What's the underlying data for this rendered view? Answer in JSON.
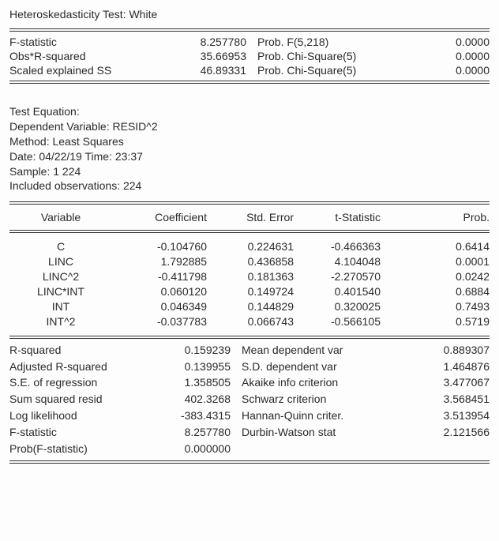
{
  "title": "Heteroskedasticity Test: White",
  "top_stats": [
    {
      "l": "F-statistic",
      "lv": "8.257780",
      "r": "Prob. F(5,218)",
      "rv": "0.0000"
    },
    {
      "l": "Obs*R-squared",
      "lv": "35.66953",
      "r": "Prob. Chi-Square(5)",
      "rv": "0.0000"
    },
    {
      "l": "Scaled explained SS",
      "lv": "46.89331",
      "r": "Prob. Chi-Square(5)",
      "rv": "0.0000"
    }
  ],
  "meta": [
    "Test Equation:",
    "Dependent Variable: RESID^2",
    "Method: Least Squares",
    "Date: 04/22/19   Time: 23:37",
    "Sample: 1 224",
    "Included observations: 224"
  ],
  "coef_headers": {
    "v": "Variable",
    "c": "Coefficient",
    "s": "Std. Error",
    "t": "t-Statistic",
    "p": "Prob."
  },
  "coef_rows": [
    {
      "v": "C",
      "c": "-0.104760",
      "s": "0.224631",
      "t": "-0.466363",
      "p": "0.6414"
    },
    {
      "v": "LINC",
      "c": "1.792885",
      "s": "0.436858",
      "t": "4.104048",
      "p": "0.0001"
    },
    {
      "v": "LINC^2",
      "c": "-0.411798",
      "s": "0.181363",
      "t": "-2.270570",
      "p": "0.0242"
    },
    {
      "v": "LINC*INT",
      "c": "0.060120",
      "s": "0.149724",
      "t": "0.401540",
      "p": "0.6884"
    },
    {
      "v": "INT",
      "c": "0.046349",
      "s": "0.144829",
      "t": "0.320025",
      "p": "0.7493"
    },
    {
      "v": "INT^2",
      "c": "-0.037783",
      "s": "0.066743",
      "t": "-0.566105",
      "p": "0.5719"
    }
  ],
  "summary": [
    {
      "l": "R-squared",
      "lv": "0.159239",
      "r": "Mean dependent var",
      "rv": "0.889307"
    },
    {
      "l": "Adjusted R-squared",
      "lv": "0.139955",
      "r": "S.D. dependent var",
      "rv": "1.464876"
    },
    {
      "l": "S.E. of regression",
      "lv": "1.358505",
      "r": "Akaike info criterion",
      "rv": "3.477067"
    },
    {
      "l": "Sum squared resid",
      "lv": "402.3268",
      "r": "Schwarz criterion",
      "rv": "3.568451"
    },
    {
      "l": "Log likelihood",
      "lv": "-383.4315",
      "r": "Hannan-Quinn criter.",
      "rv": "3.513954"
    },
    {
      "l": "F-statistic",
      "lv": "8.257780",
      "r": "Durbin-Watson stat",
      "rv": "2.121566"
    },
    {
      "l": "Prob(F-statistic)",
      "lv": "0.000000",
      "r": "",
      "rv": ""
    }
  ]
}
